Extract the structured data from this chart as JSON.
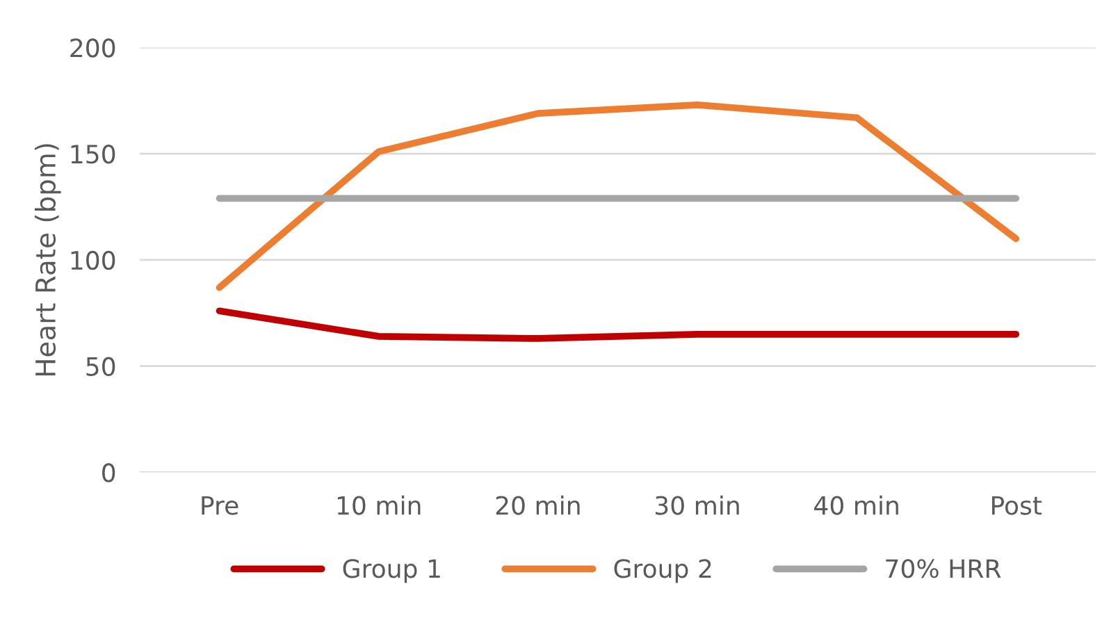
{
  "chart_data": {
    "type": "line",
    "ylabel": "Heart Rate (bpm)",
    "categories": [
      "Pre",
      "10 min",
      "20 min",
      "30 min",
      "40 min",
      "Post"
    ],
    "series": [
      {
        "name": "Group 1",
        "color": "#c00000",
        "values": [
          76,
          64,
          63,
          65,
          65,
          65
        ]
      },
      {
        "name": "Group 2",
        "color": "#ed7d31",
        "values": [
          87,
          151,
          169,
          173,
          167,
          110
        ]
      },
      {
        "name": "70% HRR",
        "color": "#a5a5a5",
        "values": [
          129,
          129,
          129,
          129,
          129,
          129
        ]
      }
    ],
    "ylim": [
      0,
      200
    ],
    "yticks": [
      0,
      50,
      100,
      150,
      200
    ],
    "grid": "y",
    "legend": "bottom",
    "marker": "none",
    "line_style": "solid"
  }
}
